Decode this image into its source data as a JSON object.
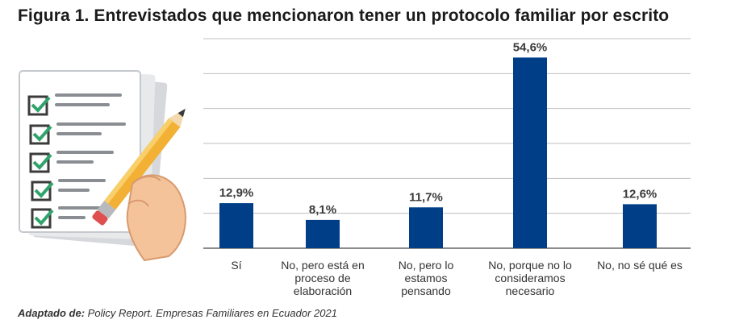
{
  "title": "Figura 1. Entrevistados que mencionaron tener un protocolo familiar por escrito",
  "source": {
    "label": "Adaptado de:",
    "text": " Policy Report. Empresas Familiares en Ecuador 2021"
  },
  "colors": {
    "bar": "#003f87",
    "grid": "#bfbfbf",
    "axis": "#666666",
    "text": "#333333"
  },
  "chart_data": {
    "type": "bar",
    "title": "Figura 1. Entrevistados que mencionaron tener un protocolo familiar por escrito",
    "xlabel": "",
    "ylabel": "",
    "ylim": [
      0,
      60
    ],
    "grid": true,
    "categories": [
      "Sí",
      "No, pero está en proceso de elaboración",
      "No, pero lo estamos pensando",
      "No, porque no lo consideramos necesario",
      "No, no sé qué es"
    ],
    "values": [
      12.9,
      8.1,
      11.7,
      54.6,
      12.6
    ],
    "data_labels": [
      "12,9%",
      "8,1%",
      "11,7%",
      "54,6%",
      "12,6%"
    ]
  }
}
